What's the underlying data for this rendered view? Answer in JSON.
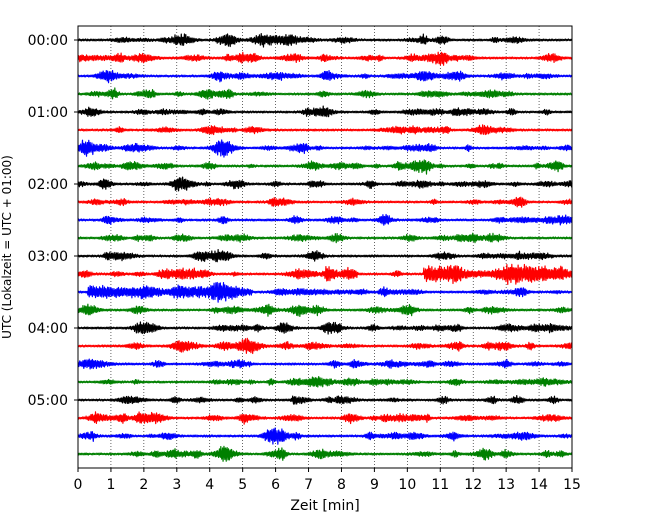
{
  "chart_data": {
    "type": "line",
    "subtype": "helicorder",
    "title": "",
    "xlabel": "Zeit  [min]",
    "ylabel": "UTC (Lokalzeit = UTC + 01:00)",
    "xlim": [
      0,
      15
    ],
    "x_ticks": [
      "0",
      "1",
      "2",
      "3",
      "4",
      "5",
      "6",
      "7",
      "8",
      "9",
      "10",
      "11",
      "12",
      "13",
      "14",
      "15"
    ],
    "y_tick_labels": [
      "00:00",
      "01:00",
      "02:00",
      "03:00",
      "04:00",
      "05:00"
    ],
    "rows_per_hour": 4,
    "row_count": 24,
    "row_minutes": 15,
    "grid": "vertical dotted at each minute",
    "trace_colors": [
      "#000000",
      "#ff0000",
      "#0000ff",
      "#008000"
    ],
    "events": [
      {
        "row": 13,
        "start_min": 7.5,
        "end_min": 8.5,
        "amplitude": "moderate"
      },
      {
        "row": 13,
        "start_min": 10.5,
        "end_min": 15,
        "amplitude": "large"
      },
      {
        "row": 14,
        "start_min": 0.3,
        "end_min": 5.3,
        "amplitude": "moderate"
      }
    ]
  }
}
